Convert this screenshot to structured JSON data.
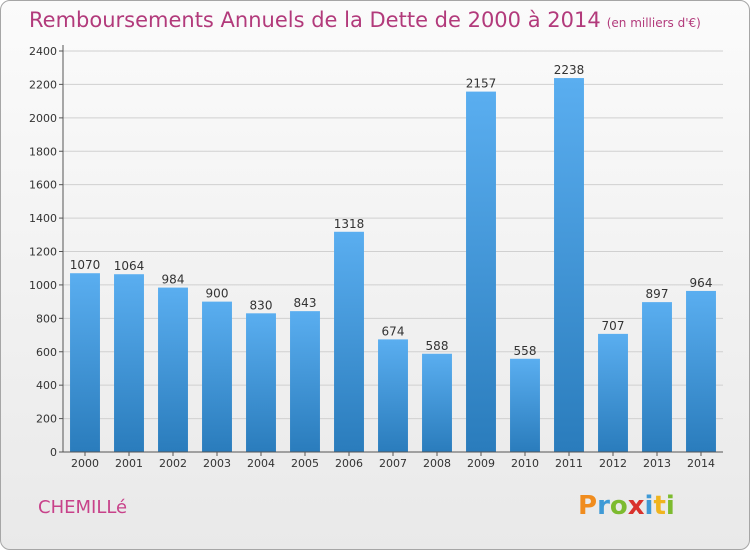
{
  "title": "Remboursements Annuels de la Dette de 2000 à 2014",
  "unit": "(en milliers d'€)",
  "commune": "CHEMILLé",
  "logo": {
    "letters": [
      "P",
      "r",
      "o",
      "x",
      "i",
      "t",
      "i"
    ],
    "colors": [
      "#f08c1e",
      "#3f9ad6",
      "#7dbb2f",
      "#d9322c",
      "#3f9ad6",
      "#f0b41e",
      "#7dbb2f"
    ]
  },
  "colors": {
    "title": "#b23a7b",
    "bar_top": "#5aaef0",
    "bar_bottom": "#2a7cbc",
    "grid": "#d0d0d0"
  },
  "chart_data": {
    "type": "bar",
    "categories": [
      "2000",
      "2001",
      "2002",
      "2003",
      "2004",
      "2005",
      "2006",
      "2007",
      "2008",
      "2009",
      "2010",
      "2011",
      "2012",
      "2013",
      "2014"
    ],
    "values": [
      1070,
      1064,
      984,
      900,
      830,
      843,
      1318,
      674,
      588,
      2157,
      558,
      2238,
      707,
      897,
      964
    ],
    "yticks": [
      0,
      200,
      400,
      600,
      800,
      1000,
      1200,
      1400,
      1600,
      1800,
      2000,
      2200,
      2400
    ],
    "ylim": [
      0,
      2400
    ],
    "grid": true
  }
}
